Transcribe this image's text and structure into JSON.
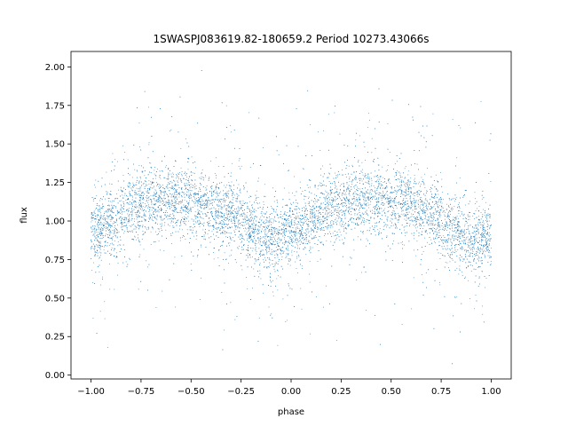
{
  "chart_data": {
    "type": "scatter",
    "title": "1SWASPJ083619.82-180659.2 Period 10273.43066s",
    "xlabel": "phase",
    "ylabel": "flux",
    "xlim": [
      -1.1,
      1.1
    ],
    "ylim": [
      -0.025,
      2.1
    ],
    "xticks": [
      -1.0,
      -0.75,
      -0.5,
      -0.25,
      0.0,
      0.25,
      0.5,
      0.75,
      1.0
    ],
    "xtick_labels": [
      "−1.00",
      "−0.75",
      "−0.50",
      "−0.25",
      "0.00",
      "0.25",
      "0.50",
      "0.75",
      "1.00"
    ],
    "yticks": [
      0.0,
      0.25,
      0.5,
      0.75,
      1.0,
      1.25,
      1.5,
      1.75,
      2.0
    ],
    "ytick_labels": [
      "0.00",
      "0.25",
      "0.50",
      "0.75",
      "1.00",
      "1.25",
      "1.50",
      "1.75",
      "2.00"
    ],
    "grid": false,
    "marker_color": "#1f77b4",
    "series": [
      {
        "phase_range": [
          -1.0,
          1.0
        ],
        "curve_points": [
          {
            "x": -1.0,
            "y": 0.92
          },
          {
            "x": -0.9,
            "y": 1.0
          },
          {
            "x": -0.8,
            "y": 1.08
          },
          {
            "x": -0.7,
            "y": 1.13
          },
          {
            "x": -0.6,
            "y": 1.14
          },
          {
            "x": -0.5,
            "y": 1.12
          },
          {
            "x": -0.4,
            "y": 1.09
          },
          {
            "x": -0.3,
            "y": 1.04
          },
          {
            "x": -0.2,
            "y": 0.95
          },
          {
            "x": -0.1,
            "y": 0.88
          },
          {
            "x": 0.0,
            "y": 0.92
          },
          {
            "x": 0.1,
            "y": 1.0
          },
          {
            "x": 0.2,
            "y": 1.08
          },
          {
            "x": 0.3,
            "y": 1.13
          },
          {
            "x": 0.4,
            "y": 1.14
          },
          {
            "x": 0.5,
            "y": 1.12
          },
          {
            "x": 0.6,
            "y": 1.09
          },
          {
            "x": 0.7,
            "y": 1.04
          },
          {
            "x": 0.8,
            "y": 0.95
          },
          {
            "x": 0.9,
            "y": 0.88
          },
          {
            "x": 1.0,
            "y": 0.92
          }
        ]
      }
    ]
  }
}
